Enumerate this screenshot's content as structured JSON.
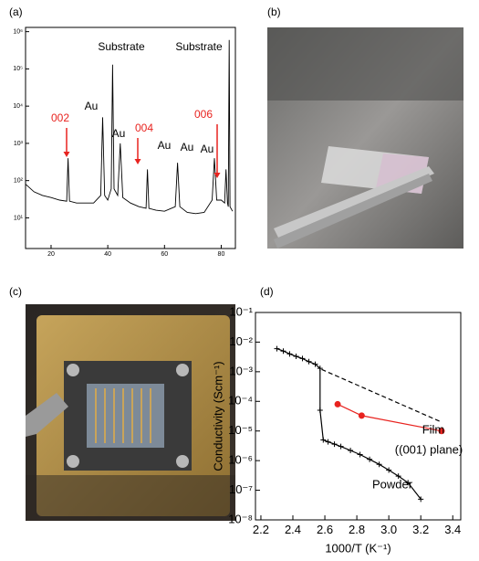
{
  "chart_data": [
    {
      "type": "line",
      "title": "(a)",
      "log_y": true,
      "xlim": [
        11,
        85
      ],
      "ylim": [
        1.5,
        1300000
      ],
      "xticks": [
        20,
        40,
        60,
        80
      ],
      "yticks": [
        {
          "value": 10,
          "label": "10¹"
        },
        {
          "value": 100,
          "label": "10²"
        },
        {
          "value": 1000,
          "label": "10³"
        },
        {
          "value": 10000,
          "label": "10⁴"
        },
        {
          "value": 100000,
          "label": "10⁵"
        },
        {
          "value": 1000000,
          "label": "10⁶"
        }
      ],
      "series": [
        {
          "color": "#000000",
          "marker": null,
          "dashed": false,
          "x": [
            11,
            14,
            17,
            20,
            23,
            25.5,
            26,
            26.5,
            29,
            32,
            35,
            37.5,
            38.2,
            38.9,
            40,
            41.2,
            41.7,
            42.2,
            43.5,
            44.4,
            45.3,
            48,
            51,
            53.5,
            54,
            54.5,
            57,
            60,
            63.8,
            64.6,
            65.4,
            68,
            71,
            74,
            76.8,
            77.6,
            78.4,
            80,
            81.2,
            81.7,
            82.2,
            82.5,
            82.8,
            83.1,
            84
          ],
          "values": [
            80,
            50,
            40,
            35,
            30,
            28,
            400,
            28,
            25,
            25,
            25,
            40,
            5000,
            40,
            30,
            60,
            130000,
            60,
            40,
            1000,
            35,
            25,
            20,
            18,
            200,
            18,
            16,
            15,
            20,
            300,
            20,
            14,
            13,
            14,
            30,
            400,
            30,
            30,
            25,
            200,
            25,
            20,
            600000,
            20,
            15
          ]
        }
      ],
      "annotations": [
        {
          "text": "Substrate",
          "color": "#000000"
        },
        {
          "text": "Substrate",
          "color": "#000000"
        },
        {
          "text": "Au",
          "color": "#000000"
        },
        {
          "text": "Au",
          "color": "#000000"
        },
        {
          "text": "Au",
          "color": "#000000"
        },
        {
          "text": "Au",
          "color": "#000000"
        },
        {
          "text": "Au",
          "color": "#000000"
        },
        {
          "text": "002",
          "color": "#e8231f"
        },
        {
          "text": "004",
          "color": "#e8231f"
        },
        {
          "text": "006",
          "color": "#e8231f"
        }
      ]
    },
    {
      "type": "line",
      "title": "(d)",
      "log_y": true,
      "xlim": [
        2.166,
        3.45
      ],
      "ylim": [
        1e-08,
        0.1
      ],
      "x_label": "1000/T (K⁻¹)",
      "y_label": "Conductivity (Scm⁻¹)",
      "xticks": [
        {
          "value": 2.2,
          "label": "2.2"
        },
        {
          "value": 2.4,
          "label": "2.4"
        },
        {
          "value": 2.6,
          "label": "2.6"
        },
        {
          "value": 2.8,
          "label": "2.8"
        },
        {
          "value": 3.0,
          "label": "3.0"
        },
        {
          "value": 3.2,
          "label": "3.2"
        },
        {
          "value": 3.4,
          "label": "3.4"
        }
      ],
      "yticks": [
        {
          "value": 1e-08,
          "label": "10⁻⁸"
        },
        {
          "value": 1e-07,
          "label": "10⁻⁷"
        },
        {
          "value": 1e-06,
          "label": "10⁻⁶"
        },
        {
          "value": 1e-05,
          "label": "10⁻⁵"
        },
        {
          "value": 0.0001,
          "label": "10⁻⁴"
        },
        {
          "value": 0.001,
          "label": "10⁻³"
        },
        {
          "value": 0.01,
          "label": "10⁻²"
        },
        {
          "value": 0.1,
          "label": "10⁻¹"
        }
      ],
      "series": [
        {
          "color": "#000000",
          "marker": "plus",
          "dashed": false,
          "x": [
            2.3,
            2.34,
            2.38,
            2.42,
            2.46,
            2.5,
            2.54,
            2.57,
            2.57,
            2.59,
            2.62,
            2.66,
            2.7,
            2.76,
            2.82,
            2.88,
            2.94,
            3.0,
            3.06,
            3.12,
            3.2
          ],
          "values": [
            0.006,
            0.005,
            0.004,
            0.0033,
            0.0028,
            0.0022,
            0.0018,
            0.0013,
            5e-05,
            5e-06,
            4.3e-06,
            3.6e-06,
            3e-06,
            2.2e-06,
            1.6e-06,
            1.1e-06,
            7.5e-07,
            4.8e-07,
            3e-07,
            1.8e-07,
            5e-08
          ]
        },
        {
          "color": "#e8231f",
          "marker": "circle",
          "dashed": false,
          "x": [
            2.68,
            2.83,
            3.33
          ],
          "values": [
            8e-05,
            3.3e-05,
            1e-05
          ]
        },
        {
          "color": "#000000",
          "marker": null,
          "dashed": true,
          "x": [
            2.58,
            3.33
          ],
          "values": [
            0.0012,
            2e-05
          ]
        }
      ],
      "annotations": [
        {
          "text": "Film",
          "color": "#000000"
        },
        {
          "text": "((001) plane)",
          "color": "#000000"
        },
        {
          "text": "Powder",
          "color": "#000000"
        }
      ]
    }
  ],
  "photos": [
    {
      "label": "(b)"
    },
    {
      "label": "(c)"
    }
  ]
}
